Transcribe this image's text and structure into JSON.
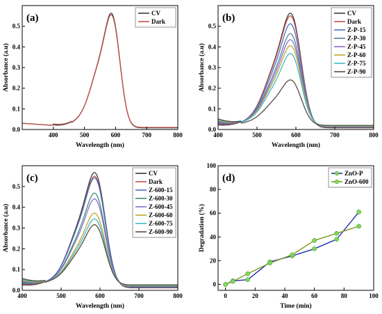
{
  "figure": {
    "panels": [
      {
        "label": "(a)",
        "xlabel": "Wavelength (nm)",
        "ylabel": "Absorbance (a.u)"
      },
      {
        "label": "(b)",
        "xlabel": "Wavelength (nm)",
        "ylabel": "Absorbance (a.u)"
      },
      {
        "label": "(c)",
        "xlabel": "Wavelength (nm)",
        "ylabel": "Absorbance (a.u)"
      },
      {
        "label": "(d)",
        "xlabel": "Time (min)",
        "ylabel": "Degradation (%)"
      }
    ]
  },
  "chart_data": [
    {
      "type": "line",
      "title": "(a)",
      "xlabel": "Wavelength (nm)",
      "ylabel": "Absorbance (a.u)",
      "xlim": [
        300,
        800
      ],
      "ylim": [
        0,
        0.6
      ],
      "xticks": [
        400,
        500,
        600,
        700,
        800
      ],
      "yticks": [
        0.0,
        0.1,
        0.2,
        0.3,
        0.4,
        0.5
      ],
      "legend_position": "top-right",
      "series": [
        {
          "name": "CV",
          "color": "#3a3a3a",
          "peak": 0.555,
          "tail": 0.008
        },
        {
          "name": "Dark",
          "color": "#c0504d",
          "peak": 0.545,
          "tail": 0.01
        }
      ]
    },
    {
      "type": "line",
      "title": "(b)",
      "xlabel": "Wavelength (nm)",
      "ylabel": "Absorbance (a.u)",
      "xlim": [
        400,
        800
      ],
      "ylim": [
        0,
        0.6
      ],
      "xticks": [
        400,
        500,
        600,
        700,
        800
      ],
      "yticks": [
        0.0,
        0.1,
        0.2,
        0.3,
        0.4,
        0.5
      ],
      "legend_position": "top-right",
      "series": [
        {
          "name": "CV",
          "color": "#3a3a3a",
          "peak": 0.555,
          "tail": 0.008
        },
        {
          "name": "Dark",
          "color": "#c0504d",
          "peak": 0.54,
          "tail": 0.01
        },
        {
          "name": "Z-P-15",
          "color": "#4472c4",
          "peak": 0.5,
          "tail": 0.012
        },
        {
          "name": "Z-P-30",
          "color": "#5b7f96",
          "peak": 0.45,
          "tail": 0.014
        },
        {
          "name": "Z-P-45",
          "color": "#8e6bc9",
          "peak": 0.42,
          "tail": 0.015
        },
        {
          "name": "Z-P-60",
          "color": "#bfa82a",
          "peak": 0.39,
          "tail": 0.016
        },
        {
          "name": "Z-P-75",
          "color": "#3cb9c8",
          "peak": 0.35,
          "tail": 0.018
        },
        {
          "name": "Z-P-90",
          "color": "#5a4a3e",
          "peak": 0.22,
          "tail": 0.02
        }
      ]
    },
    {
      "type": "line",
      "title": "(c)",
      "xlabel": "Wavelength (nm)",
      "ylabel": "Absorbance (a.u)",
      "xlim": [
        400,
        800
      ],
      "ylim": [
        0,
        0.6
      ],
      "xticks": [
        400,
        500,
        600,
        700,
        800
      ],
      "yticks": [
        0.0,
        0.1,
        0.2,
        0.3,
        0.4,
        0.5
      ],
      "legend_position": "top-right",
      "series": [
        {
          "name": "CV",
          "color": "#3a3a3a",
          "peak": 0.555,
          "tail": 0.012
        },
        {
          "name": "Dark",
          "color": "#c0504d",
          "peak": 0.535,
          "tail": 0.014
        },
        {
          "name": "Z-600-15",
          "color": "#4472c4",
          "peak": 0.525,
          "tail": 0.016
        },
        {
          "name": "Z-600-30",
          "color": "#3f8f7a",
          "peak": 0.45,
          "tail": 0.018
        },
        {
          "name": "Z-600-45",
          "color": "#8e6bc9",
          "peak": 0.42,
          "tail": 0.02
        },
        {
          "name": "Z-600-60",
          "color": "#bfa82a",
          "peak": 0.35,
          "tail": 0.022
        },
        {
          "name": "Z-600-75",
          "color": "#3cb9c8",
          "peak": 0.32,
          "tail": 0.024
        },
        {
          "name": "Z-600-90",
          "color": "#5a4a3e",
          "peak": 0.29,
          "tail": 0.026
        }
      ]
    },
    {
      "type": "line",
      "title": "(d)",
      "xlabel": "Time (min)",
      "ylabel": "Degradation (%)",
      "xlim": [
        -5,
        100
      ],
      "ylim": [
        -5,
        100
      ],
      "xticks": [
        0,
        20,
        40,
        60,
        80,
        100
      ],
      "yticks": [
        0,
        20,
        40,
        60,
        80,
        100
      ],
      "legend_position": "top-right",
      "x": [
        0,
        5,
        15,
        30,
        45,
        60,
        75,
        90
      ],
      "series": [
        {
          "name": "ZnO-P",
          "color": "#1f2fb0",
          "marker_color": "#7ed957",
          "values": [
            0,
            3,
            4,
            19,
            24,
            30,
            38,
            61
          ]
        },
        {
          "name": "ZnO-600",
          "color": "#7a9a22",
          "marker_color": "#7ed957",
          "values": [
            0,
            2.5,
            9,
            18,
            25,
            37,
            43,
            49
          ]
        }
      ]
    }
  ]
}
